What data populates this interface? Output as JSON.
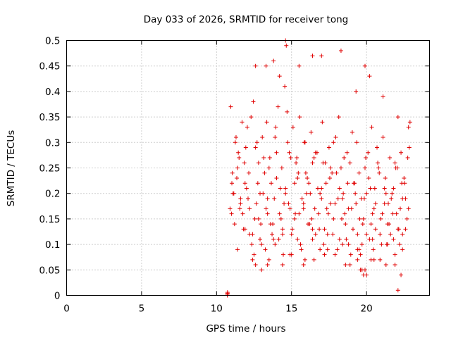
{
  "chart_data": {
    "type": "scatter",
    "title": "Day 033 of 2026, SRMTID for receiver tong",
    "xlabel": "GPS time / hours",
    "ylabel": "SRMTID / TECUs",
    "xlim": [
      0,
      24.2
    ],
    "ylim": [
      0,
      0.5
    ],
    "xticks": [
      0,
      5,
      10,
      15,
      20
    ],
    "xtick_labels": [
      "0",
      "5",
      "10",
      "15",
      "20"
    ],
    "yticks": [
      0,
      0.05,
      0.1,
      0.15,
      0.2,
      0.25,
      0.3,
      0.35,
      0.4,
      0.45,
      0.5
    ],
    "ytick_labels": [
      "0",
      "0.05",
      "0.1",
      "0.15",
      "0.2",
      "0.25",
      "0.3",
      "0.35",
      "0.4",
      "0.45",
      "0.5"
    ],
    "grid": true,
    "marker": "+",
    "color": "#e00000",
    "series": [
      {
        "name": "SRMTID",
        "x": [
          10.72,
          10.72,
          10.73,
          10.73,
          10.95,
          11.05,
          11.15,
          11.3,
          11.45,
          11.6,
          11.75,
          11.9,
          12.05,
          12.2,
          12.35,
          12.5,
          12.65,
          12.8,
          12.95,
          13.1,
          13.25,
          13.4,
          13.55,
          13.7,
          13.85,
          14.0,
          14.15,
          14.3,
          14.45,
          14.6,
          14.75,
          14.9,
          15.05,
          15.2,
          15.35,
          15.5,
          15.65,
          15.8,
          15.95,
          16.1,
          16.25,
          16.4,
          16.55,
          16.7,
          16.85,
          17.0,
          17.15,
          17.3,
          17.45,
          17.6,
          17.75,
          17.9,
          18.05,
          18.2,
          18.35,
          18.5,
          18.65,
          18.8,
          18.95,
          19.1,
          19.25,
          19.4,
          19.55,
          19.7,
          19.85,
          20.0,
          20.15,
          20.3,
          20.45,
          20.6,
          20.75,
          20.9,
          21.05,
          21.2,
          21.35,
          21.5,
          21.65,
          21.8,
          21.95,
          22.1,
          22.25,
          22.4,
          22.55,
          22.7,
          22.85,
          11.0,
          11.2,
          11.4,
          11.6,
          11.8,
          12.0,
          12.2,
          12.4,
          12.6,
          12.8,
          13.0,
          13.2,
          13.4,
          13.6,
          13.8,
          14.0,
          14.2,
          14.4,
          14.6,
          14.8,
          15.0,
          15.2,
          15.4,
          15.6,
          15.8,
          16.0,
          16.2,
          16.4,
          16.6,
          16.8,
          17.0,
          17.2,
          17.4,
          17.6,
          17.8,
          18.0,
          18.2,
          18.4,
          18.6,
          18.8,
          19.0,
          19.2,
          19.4,
          19.6,
          19.8,
          20.0,
          20.2,
          20.4,
          20.6,
          20.8,
          21.0,
          21.2,
          21.4,
          21.6,
          21.8,
          22.0,
          22.2,
          22.4,
          22.6,
          22.8,
          11.1,
          11.35,
          11.55,
          11.85,
          12.1,
          12.3,
          12.55,
          12.75,
          13.05,
          13.3,
          13.5,
          13.75,
          13.95,
          14.25,
          14.5,
          14.7,
          14.95,
          15.25,
          15.45,
          15.7,
          15.9,
          16.15,
          16.35,
          16.6,
          16.9,
          17.1,
          17.35,
          17.55,
          17.8,
          18.1,
          18.3,
          18.55,
          18.75,
          19.05,
          19.3,
          19.5,
          19.75,
          19.95,
          20.25,
          20.5,
          20.7,
          20.95,
          21.25,
          21.45,
          21.7,
          21.9,
          22.15,
          22.35,
          22.6,
          22.8,
          11.02,
          11.25,
          11.5,
          11.7,
          11.95,
          12.15,
          12.45,
          12.7,
          12.9,
          13.15,
          13.35,
          13.65,
          13.9,
          14.1,
          14.35,
          14.55,
          14.85,
          15.1,
          15.3,
          15.55,
          15.85,
          16.05,
          16.3,
          16.5,
          16.75,
          17.05,
          17.25,
          17.5,
          17.7,
          17.95,
          18.15,
          18.45,
          18.7,
          18.9,
          19.15,
          19.35,
          19.65,
          19.9,
          20.1,
          20.35,
          20.55,
          20.85,
          21.1,
          21.3,
          21.55,
          21.75,
          22.05,
          22.3,
          22.5,
          22.75,
          10.9,
          11.4,
          11.9,
          12.4,
          12.9,
          13.4,
          13.9,
          14.4,
          14.9,
          15.4,
          15.9,
          16.4,
          16.9,
          17.4,
          17.9,
          18.4,
          18.9,
          19.4,
          19.9,
          20.4,
          20.9,
          21.4,
          21.9,
          22.4,
          22.9,
          12.6,
          13.3,
          13.8,
          14.2,
          14.6,
          14.65,
          15.5,
          16.4,
          17.0,
          18.3,
          19.3,
          19.9,
          20.2,
          21.1,
          22.1,
          12.6,
          13.0,
          13.5,
          14.4,
          15.0,
          15.8,
          16.5,
          17.2,
          18.6,
          19.6,
          19.8,
          20.5,
          21.3,
          21.9,
          22.3,
          22.1,
          20.0,
          19.7,
          19.5,
          20.3
        ],
        "y": [
          0.0,
          0.002,
          0.004,
          0.006,
          0.37,
          0.24,
          0.2,
          0.31,
          0.28,
          0.19,
          0.16,
          0.22,
          0.33,
          0.12,
          0.1,
          0.08,
          0.18,
          0.26,
          0.14,
          0.2,
          0.09,
          0.16,
          0.27,
          0.12,
          0.19,
          0.23,
          0.11,
          0.15,
          0.08,
          0.2,
          0.3,
          0.17,
          0.13,
          0.22,
          0.27,
          0.16,
          0.09,
          0.18,
          0.24,
          0.14,
          0.2,
          0.11,
          0.17,
          0.28,
          0.13,
          0.19,
          0.1,
          0.22,
          0.16,
          0.25,
          0.12,
          0.18,
          0.09,
          0.21,
          0.15,
          0.27,
          0.11,
          0.17,
          0.08,
          0.13,
          0.2,
          0.07,
          0.15,
          0.1,
          0.19,
          0.12,
          0.23,
          0.14,
          0.09,
          0.18,
          0.26,
          0.12,
          0.16,
          0.21,
          0.1,
          0.14,
          0.19,
          0.11,
          0.25,
          0.13,
          0.17,
          0.09,
          0.22,
          0.15,
          0.29,
          0.16,
          0.14,
          0.25,
          0.18,
          0.13,
          0.21,
          0.17,
          0.12,
          0.29,
          0.15,
          0.1,
          0.24,
          0.19,
          0.14,
          0.11,
          0.28,
          0.16,
          0.13,
          0.21,
          0.18,
          0.12,
          0.15,
          0.23,
          0.1,
          0.17,
          0.2,
          0.14,
          0.26,
          0.12,
          0.16,
          0.21,
          0.13,
          0.09,
          0.18,
          0.15,
          0.24,
          0.11,
          0.19,
          0.14,
          0.1,
          0.17,
          0.22,
          0.12,
          0.08,
          0.15,
          0.2,
          0.11,
          0.16,
          0.13,
          0.25,
          0.1,
          0.18,
          0.14,
          0.12,
          0.21,
          0.16,
          0.1,
          0.19,
          0.13,
          0.17,
          0.2,
          0.23,
          0.17,
          0.26,
          0.19,
          0.35,
          0.15,
          0.22,
          0.31,
          0.17,
          0.25,
          0.14,
          0.33,
          0.21,
          0.18,
          0.36,
          0.27,
          0.16,
          0.24,
          0.19,
          0.3,
          0.22,
          0.15,
          0.28,
          0.2,
          0.26,
          0.17,
          0.23,
          0.3,
          0.19,
          0.25,
          0.16,
          0.22,
          0.32,
          0.18,
          0.24,
          0.14,
          0.27,
          0.21,
          0.17,
          0.29,
          0.15,
          0.23,
          0.18,
          0.2,
          0.26,
          0.13,
          0.22,
          0.19,
          0.33,
          0.22,
          0.3,
          0.27,
          0.34,
          0.29,
          0.24,
          0.38,
          0.3,
          0.2,
          0.27,
          0.34,
          0.22,
          0.31,
          0.37,
          0.25,
          0.41,
          0.28,
          0.33,
          0.26,
          0.35,
          0.3,
          0.23,
          0.32,
          0.27,
          0.21,
          0.34,
          0.26,
          0.29,
          0.24,
          0.31,
          0.35,
          0.2,
          0.28,
          0.26,
          0.22,
          0.3,
          0.19,
          0.25,
          0.28,
          0.33,
          0.21,
          0.24,
          0.31,
          0.2,
          0.27,
          0.16,
          0.25,
          0.28,
          0.23,
          0.27,
          0.17,
          0.09,
          0.13,
          0.07,
          0.11,
          0.06,
          0.1,
          0.12,
          0.08,
          0.11,
          0.07,
          0.13,
          0.09,
          0.12,
          0.08,
          0.1,
          0.06,
          0.09,
          0.05,
          0.11,
          0.07,
          0.1,
          0.08,
          0.12,
          0.34,
          0.45,
          0.45,
          0.46,
          0.43,
          0.5,
          0.49,
          0.45,
          0.47,
          0.47,
          0.48,
          0.4,
          0.45,
          0.43,
          0.39,
          0.35,
          0.06,
          0.05,
          0.07,
          0.06,
          0.08,
          0.06,
          0.07,
          0.08,
          0.06,
          0.05,
          0.04,
          0.07,
          0.06,
          0.06,
          0.04,
          0.01,
          0.04,
          0.05,
          0.09,
          0.07
        ]
      }
    ]
  }
}
